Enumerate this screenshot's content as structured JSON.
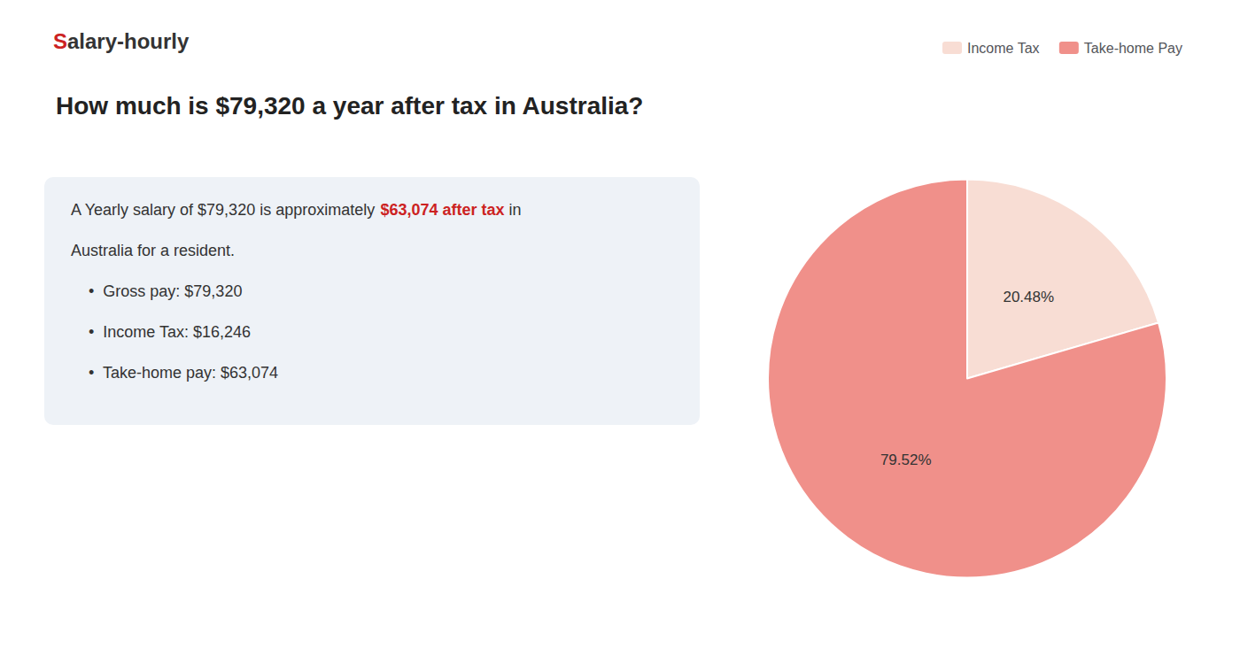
{
  "chart_data": {
    "type": "pie",
    "title": "How much is $79,320 a year after tax in Australia?",
    "annotations": [
      [
        {
          "text": "S",
          "color": "#cc2222"
        },
        {
          "text": "alary-hourly"
        }
      ],
      [
        {
          "text": "A Yearly salary of $79,320 is approximately "
        },
        {
          "text": "$63,074 after tax",
          "color": "#cc2222"
        },
        {
          "text": " in"
        }
      ],
      [
        {
          "text": "Australia for a resident."
        }
      ],
      [
        {
          "text": "•  Gross pay: $79,320"
        }
      ],
      [
        {
          "text": "•  Income Tax: $16,246"
        }
      ],
      [
        {
          "text": "•  Take-home pay: $63,074"
        }
      ]
    ],
    "categories": [
      "Income Tax",
      "Take-home Pay"
    ],
    "values": [
      20.48,
      79.52
    ],
    "value_labels": [
      "20.48%",
      "79.52%"
    ],
    "colors": [
      "#f8ddd4",
      "#f0908a"
    ],
    "data_labels": true,
    "legend": "top"
  }
}
